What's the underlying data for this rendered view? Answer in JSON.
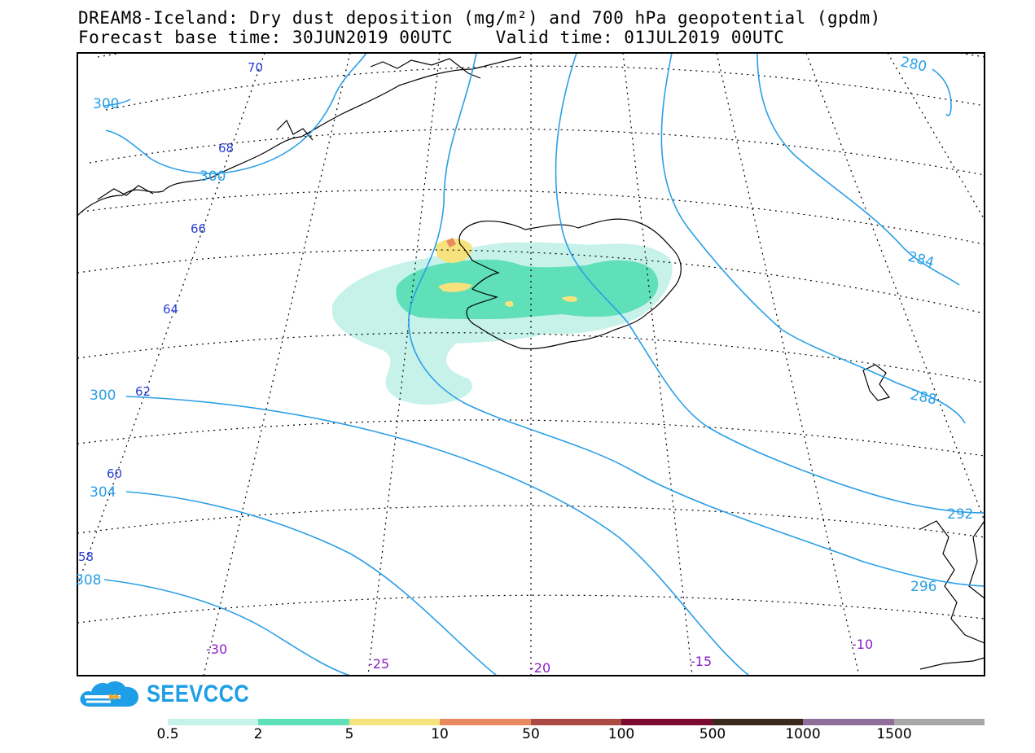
{
  "title": {
    "line1": "DREAM8-Iceland: Dry dust deposition (mg/m²) and 700 hPa geopotential (gpdm)",
    "line2": "Forecast base time: 30JUN2019 00UTC    Valid time: 01JUL2019 00UTC"
  },
  "logo": {
    "text": "SEEVCCC",
    "icon": "cloud-logo-icon"
  },
  "latitude_labels": [
    "70",
    "68",
    "66",
    "64",
    "62",
    "60",
    "58"
  ],
  "longitude_labels": [
    "-30",
    "-25",
    "-20",
    "-15",
    "-10"
  ],
  "contour_labels": [
    "280",
    "284",
    "288",
    "292",
    "296",
    "300",
    "300",
    "300",
    "304",
    "308"
  ],
  "legend": {
    "colors": [
      "#c6f2ea",
      "#5fe0b8",
      "#f7e37e",
      "#e98a5e",
      "#a94a44",
      "#7a0a2e",
      "#3b2a1a",
      "#8f6f9a",
      "#a8a8a8"
    ],
    "labels": [
      "0.5",
      "2",
      "5",
      "10",
      "50",
      "100",
      "500",
      "1000",
      "1500"
    ]
  },
  "colors": {
    "contour": "#2a9fe6",
    "lat_label": "#2a3fd6",
    "lon_label": "#8a1fc7",
    "dust_low": "#c6f2ea",
    "dust_mid": "#5fe0b8",
    "dust_high": "#f7e37e"
  }
}
